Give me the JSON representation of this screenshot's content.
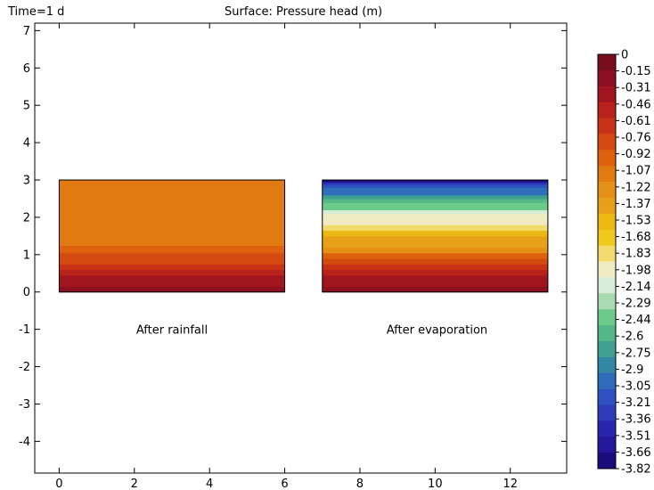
{
  "header": {
    "time_label": "Time=1 d",
    "title": "Surface: Pressure head (m)"
  },
  "chart_data": {
    "type": "heatmap",
    "title": "Surface: Pressure head (m)",
    "xlabel": "",
    "ylabel": "",
    "xlim": [
      -0.65,
      13.5
    ],
    "ylim": [
      -4.85,
      7.2
    ],
    "x_ticks": [
      0,
      2,
      4,
      6,
      8,
      10,
      12
    ],
    "y_ticks": [
      -4,
      -3,
      -2,
      -1,
      0,
      1,
      2,
      3,
      4,
      5,
      6,
      7
    ],
    "grid": false,
    "panels": [
      {
        "name": "After rainfall",
        "x_range": [
          0,
          6
        ],
        "y_range": [
          0,
          3
        ],
        "bands": [
          {
            "y0": 0.0,
            "y1": 0.15,
            "level": -0.08
          },
          {
            "y0": 0.15,
            "y1": 0.3,
            "level": -0.23
          },
          {
            "y0": 0.3,
            "y1": 0.45,
            "level": -0.38
          },
          {
            "y0": 0.45,
            "y1": 0.6,
            "level": -0.53
          },
          {
            "y0": 0.6,
            "y1": 0.75,
            "level": -0.68
          },
          {
            "y0": 0.75,
            "y1": 0.9,
            "level": -0.76
          },
          {
            "y0": 0.9,
            "y1": 1.05,
            "level": -0.84
          },
          {
            "y0": 1.05,
            "y1": 1.25,
            "level": -0.99
          },
          {
            "y0": 1.25,
            "y1": 1.75,
            "level": -1.0
          },
          {
            "y0": 1.75,
            "y1": 3.0,
            "level": -1.05
          }
        ]
      },
      {
        "name": "After evaporation",
        "x_range": [
          7,
          13
        ],
        "y_range": [
          0,
          3
        ],
        "bands": [
          {
            "y0": 0.0,
            "y1": 0.15,
            "level": -0.08
          },
          {
            "y0": 0.15,
            "y1": 0.3,
            "level": -0.23
          },
          {
            "y0": 0.3,
            "y1": 0.45,
            "level": -0.38
          },
          {
            "y0": 0.45,
            "y1": 0.6,
            "level": -0.53
          },
          {
            "y0": 0.6,
            "y1": 0.75,
            "level": -0.68
          },
          {
            "y0": 0.75,
            "y1": 0.9,
            "level": -0.84
          },
          {
            "y0": 0.9,
            "y1": 1.05,
            "level": -0.99
          },
          {
            "y0": 1.05,
            "y1": 1.2,
            "level": -1.15
          },
          {
            "y0": 1.2,
            "y1": 1.35,
            "level": -1.3
          },
          {
            "y0": 1.35,
            "y1": 1.5,
            "level": -1.45
          },
          {
            "y0": 1.5,
            "y1": 1.65,
            "level": -1.6
          },
          {
            "y0": 1.65,
            "y1": 1.8,
            "level": -1.76
          },
          {
            "y0": 1.8,
            "y1": 1.95,
            "level": -1.91
          },
          {
            "y0": 1.95,
            "y1": 2.1,
            "level": -2.06
          },
          {
            "y0": 2.1,
            "y1": 2.2,
            "level": -2.21
          },
          {
            "y0": 2.2,
            "y1": 2.3,
            "level": -2.37
          },
          {
            "y0": 2.3,
            "y1": 2.4,
            "level": -2.52
          },
          {
            "y0": 2.4,
            "y1": 2.5,
            "level": -2.67
          },
          {
            "y0": 2.5,
            "y1": 2.6,
            "level": -2.82
          },
          {
            "y0": 2.6,
            "y1": 2.7,
            "level": -2.98
          },
          {
            "y0": 2.7,
            "y1": 2.8,
            "level": -3.13
          },
          {
            "y0": 2.8,
            "y1": 2.87,
            "level": -3.28
          },
          {
            "y0": 2.87,
            "y1": 2.93,
            "level": -3.43
          },
          {
            "y0": 2.93,
            "y1": 2.97,
            "level": -3.59
          },
          {
            "y0": 2.97,
            "y1": 3.0,
            "level": -3.74
          }
        ]
      }
    ],
    "annotations": [
      {
        "text": "After rainfall",
        "x": 3,
        "y": -1
      },
      {
        "text": "After evaporation",
        "x": 10.05,
        "y": -1
      }
    ],
    "colorbar": {
      "labels": [
        "0",
        "-0.15",
        "-0.31",
        "-0.46",
        "-0.61",
        "-0.76",
        "-0.92",
        "-1.07",
        "-1.22",
        "-1.37",
        "-1.53",
        "-1.68",
        "-1.83",
        "-1.98",
        "-2.14",
        "-2.29",
        "-2.44",
        "-2.6",
        "-2.75",
        "-2.9",
        "-3.05",
        "-3.21",
        "-3.36",
        "-3.51",
        "-3.66",
        "-3.82"
      ],
      "colors": [
        "#7a0d1c",
        "#8c1020",
        "#a1151f",
        "#b8221b",
        "#c83216",
        "#d54a10",
        "#de620e",
        "#e27a12",
        "#e59016",
        "#e8a01a",
        "#ebb814",
        "#f0c91c",
        "#f2db6c",
        "#f1ebc4",
        "#d8ecd8",
        "#a8dcb0",
        "#6ccb8a",
        "#52b887",
        "#3ea08e",
        "#3386a4",
        "#2f6cba",
        "#2f52c2",
        "#2e3cba",
        "#2a25ad",
        "#221899",
        "#190d7c"
      ]
    }
  }
}
